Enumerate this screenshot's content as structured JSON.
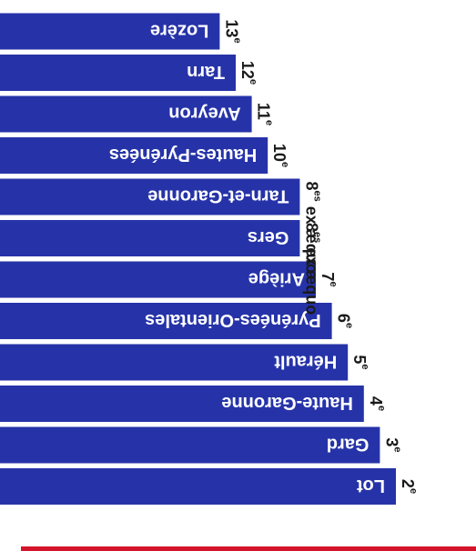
{
  "chart_data": {
    "type": "bar",
    "orientation": "horizontal",
    "rotated_180": true,
    "categories": [
      "Lot",
      "Gard",
      "Haute-Garonne",
      "Hérault",
      "Pyrénées-Orientales",
      "Ariège",
      "Gers",
      "Tarn-et-Garonne",
      "Hautes-Pyrénées",
      "Aveyron",
      "Tarn",
      "Lozère"
    ],
    "ranks": [
      {
        "num": "2",
        "sup": "e"
      },
      {
        "num": "3",
        "sup": "e"
      },
      {
        "num": "4",
        "sup": "e"
      },
      {
        "num": "5",
        "sup": "e"
      },
      {
        "num": "6",
        "sup": "e"
      },
      {
        "num": "7",
        "sup": "e"
      },
      {
        "num": "8",
        "sup": "es",
        "tail": " ex æquo"
      },
      {
        "num": "8",
        "sup": "es",
        "tail": " ex æquo"
      },
      {
        "num": "10",
        "sup": "e"
      },
      {
        "num": "11",
        "sup": "e"
      },
      {
        "num": "12",
        "sup": "e"
      },
      {
        "num": "13",
        "sup": "e"
      }
    ],
    "values": [
      12,
      11,
      10,
      9,
      8,
      7,
      6,
      6,
      4,
      3,
      2,
      1
    ],
    "colors": {
      "bar": "#2633a8",
      "bar_text": "#ffffff",
      "rank_text": "#1a1a1a",
      "accent_line": "#d4142a"
    }
  }
}
